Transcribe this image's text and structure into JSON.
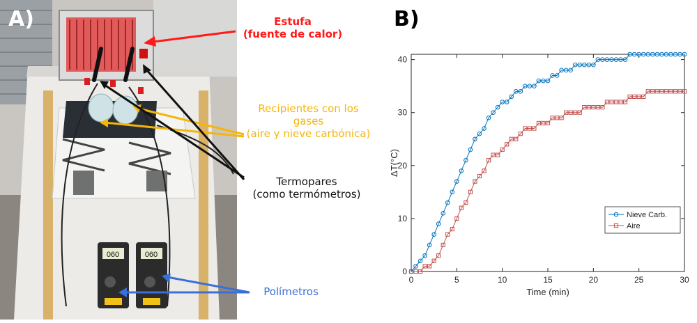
{
  "panel_a": {
    "letter": "A)",
    "annotations": {
      "heater_line1": "Estufa",
      "heater_line2": "(fuente de calor)",
      "containers_line1": "Recipientes con los",
      "containers_line2": "gases",
      "containers_line3": "(aire y nieve carbónica)",
      "thermo_line1": "Termopares",
      "thermo_line2": "(como termómetros)",
      "multimeters": "Polímetros"
    },
    "meter_readings": [
      "060",
      "060"
    ],
    "colors": {
      "heater": "#ff1a1a",
      "containers": "#f5b50a",
      "thermo": "#111111",
      "multimeters": "#3a6fd8"
    }
  },
  "panel_b": {
    "letter": "B)"
  },
  "chart_data": {
    "type": "line",
    "xlabel": "Time (min)",
    "ylabel": "ΔT(°C)",
    "xlim": [
      0,
      30
    ],
    "ylim": [
      0,
      41
    ],
    "xticks": [
      0,
      5,
      10,
      15,
      20,
      25,
      30
    ],
    "yticks": [
      0,
      10,
      20,
      30,
      40
    ],
    "legend_position": "bottom-right",
    "grid": false,
    "series": [
      {
        "name": "Nieve Carb.",
        "color": "#0072bd",
        "marker": "circle",
        "x": [
          0,
          0.5,
          1,
          1.5,
          2,
          2.5,
          3,
          3.5,
          4,
          4.5,
          5,
          5.5,
          6,
          6.5,
          7,
          7.5,
          8,
          8.5,
          9,
          9.5,
          10,
          10.5,
          11,
          11.5,
          12,
          12.5,
          13,
          13.5,
          14,
          14.5,
          15,
          15.5,
          16,
          16.5,
          17,
          17.5,
          18,
          18.5,
          19,
          19.5,
          20,
          20.5,
          21,
          21.5,
          22,
          22.5,
          23,
          23.5,
          24,
          24.5,
          25,
          25.5,
          26,
          26.5,
          27,
          27.5,
          28,
          28.5,
          29,
          29.5,
          30
        ],
        "y": [
          0,
          1,
          2,
          3,
          5,
          7,
          9,
          11,
          13,
          15,
          17,
          19,
          21,
          23,
          25,
          26,
          27,
          29,
          30,
          31,
          32,
          32,
          33,
          34,
          34,
          35,
          35,
          35,
          36,
          36,
          36,
          37,
          37,
          38,
          38,
          38,
          39,
          39,
          39,
          39,
          39,
          40,
          40,
          40,
          40,
          40,
          40,
          40,
          41,
          41,
          41,
          41,
          41,
          41,
          41,
          41,
          41,
          41,
          41,
          41,
          41
        ]
      },
      {
        "name": "Aire",
        "color": "#c0504d",
        "marker": "square",
        "x": [
          0,
          0.5,
          1,
          1.5,
          2,
          2.5,
          3,
          3.5,
          4,
          4.5,
          5,
          5.5,
          6,
          6.5,
          7,
          7.5,
          8,
          8.5,
          9,
          9.5,
          10,
          10.5,
          11,
          11.5,
          12,
          12.5,
          13,
          13.5,
          14,
          14.5,
          15,
          15.5,
          16,
          16.5,
          17,
          17.5,
          18,
          18.5,
          19,
          19.5,
          20,
          20.5,
          21,
          21.5,
          22,
          22.5,
          23,
          23.5,
          24,
          24.5,
          25,
          25.5,
          26,
          26.5,
          27,
          27.5,
          28,
          28.5,
          29,
          29.5,
          30
        ],
        "y": [
          0,
          0,
          0,
          1,
          1,
          2,
          3,
          5,
          7,
          8,
          10,
          12,
          13,
          15,
          17,
          18,
          19,
          21,
          22,
          22,
          23,
          24,
          25,
          25,
          26,
          27,
          27,
          27,
          28,
          28,
          28,
          29,
          29,
          29,
          30,
          30,
          30,
          30,
          31,
          31,
          31,
          31,
          31,
          32,
          32,
          32,
          32,
          32,
          33,
          33,
          33,
          33,
          34,
          34,
          34,
          34,
          34,
          34,
          34,
          34,
          34
        ]
      }
    ]
  }
}
